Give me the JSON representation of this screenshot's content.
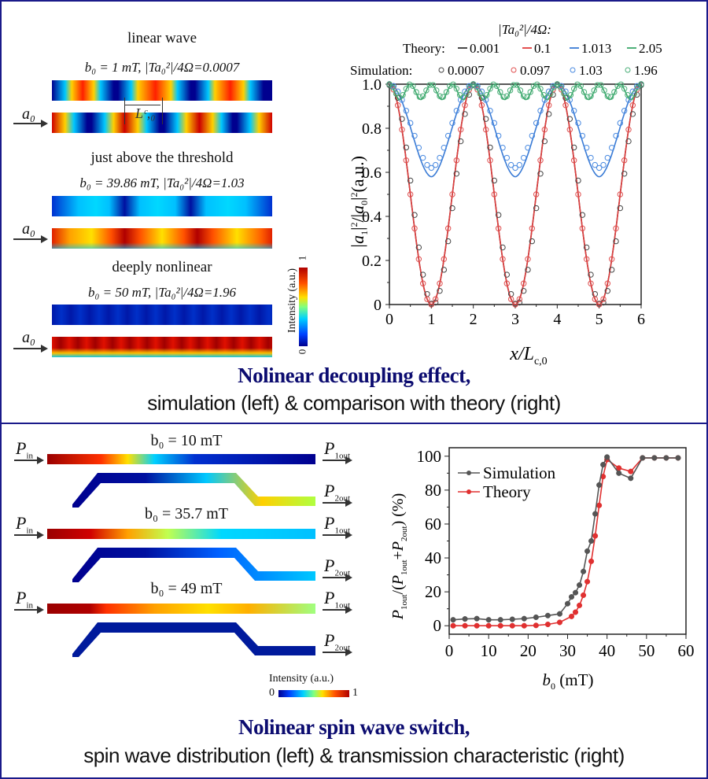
{
  "top_panel": {
    "sim": [
      {
        "title": "linear wave",
        "params": "b₀ = 1 mT, |Ta₀²|/4Ω=0.0007",
        "input_label": "a₀",
        "length_label": "Lᶜ,₀"
      },
      {
        "title": "just above the threshold",
        "params": "b₀ = 39.86 mT, |Ta₀²|/4Ω=1.03",
        "input_label": "a₀"
      },
      {
        "title": "deeply nonlinear",
        "params": "b₀ = 50 mT, |Ta₀²|/4Ω=1.96",
        "input_label": "a₀"
      }
    ],
    "colorbar": {
      "label": "Intensity (a.u.)",
      "min": "0",
      "max": "1"
    },
    "caption_title": "Nolinear decoupling effect,",
    "caption_sub": "simulation (left) & comparison with theory (right)"
  },
  "bottom_panel": {
    "sim": [
      {
        "title": "b₀ = 10 mT",
        "input": "P",
        "input_sub": "in",
        "out1": "P",
        "out1_sub": "1out",
        "out2": "P",
        "out2_sub": "2out"
      },
      {
        "title": "b₀ = 35.7 mT",
        "input": "P",
        "input_sub": "in",
        "out1": "P",
        "out1_sub": "1out",
        "out2": "P",
        "out2_sub": "2out"
      },
      {
        "title": "b₀ = 49 mT",
        "input": "P",
        "input_sub": "in",
        "out1": "P",
        "out1_sub": "1out",
        "out2": "P",
        "out2_sub": "2out"
      }
    ],
    "colorbar": {
      "label": "Intensity (a.u.)",
      "min": "0",
      "max": "1"
    },
    "caption_title": "Nolinear spin wave switch,",
    "caption_sub": "spin wave distribution (left) & transmission characteristic (right)"
  },
  "chart_data": [
    {
      "type": "line",
      "title": "|Ta₀²|/4Ω:",
      "xlabel": "x/L_c,0",
      "ylabel": "|a₁|²/|a₀|² (a.u.)",
      "xlim": [
        0,
        6
      ],
      "ylim": [
        0,
        1.0
      ],
      "xticks": [
        "0",
        "1",
        "2",
        "3",
        "4",
        "5",
        "6"
      ],
      "yticks": [
        "0",
        "0.2",
        "0.4",
        "0.6",
        "0.8",
        "1.0"
      ],
      "legend_theory_label": "Theory:",
      "legend_sim_label": "Simulation:",
      "series": [
        {
          "name": "Theory 0.001",
          "kind": "theory",
          "color": "#333333",
          "min": 0.0
        },
        {
          "name": "Theory 0.1",
          "kind": "theory",
          "color": "#e03c3c",
          "min": 0.0
        },
        {
          "name": "Theory 1.013",
          "kind": "theory",
          "color": "#3a7bd5",
          "min": 0.58
        },
        {
          "name": "Theory 2.05",
          "kind": "theory",
          "color": "#3aa86a",
          "min": 0.93,
          "period": 0.5
        },
        {
          "name": "Simulation 0.0007",
          "kind": "simulation",
          "color": "#444444",
          "min": 0.0,
          "shift": 0.04
        },
        {
          "name": "Simulation 0.097",
          "kind": "simulation",
          "color": "#e05050",
          "min": 0.0
        },
        {
          "name": "Simulation 1.03",
          "kind": "simulation",
          "color": "#4a8ae0",
          "min": 0.62
        },
        {
          "name": "Simulation 1.96",
          "kind": "simulation",
          "color": "#4aae78",
          "min": 0.94,
          "period": 0.5
        }
      ],
      "legend_entries": {
        "theory": [
          "0.001",
          "0.1",
          "1.013",
          "2.05"
        ],
        "simulation": [
          "0.0007",
          "0.097",
          "1.03",
          "1.96"
        ]
      }
    },
    {
      "type": "line",
      "title": "",
      "xlabel": "b₀ (mT)",
      "ylabel": "P1out/(P1out+P2out) (%)",
      "xlim": [
        0,
        60
      ],
      "ylim": [
        -5,
        105
      ],
      "xticks": [
        "0",
        "10",
        "20",
        "30",
        "40",
        "50",
        "60"
      ],
      "yticks": [
        "0",
        "20",
        "40",
        "60",
        "80",
        "100"
      ],
      "legend_position": "top-left",
      "series": [
        {
          "name": "Simulation",
          "color": "#555555",
          "x": [
            1,
            4,
            7,
            10,
            13,
            16,
            19,
            22,
            25,
            28,
            30,
            31,
            32,
            33,
            34,
            35,
            36,
            37,
            38,
            39,
            40,
            43,
            46,
            49,
            52,
            55,
            58
          ],
          "y": [
            3.5,
            4,
            4.2,
            3.5,
            3.5,
            3.8,
            4.2,
            5,
            6,
            7,
            13,
            17,
            19.5,
            24,
            32,
            44,
            50,
            66,
            83,
            95,
            99.5,
            90,
            87,
            99,
            99,
            99,
            99
          ]
        },
        {
          "name": "Theory",
          "color": "#e03030",
          "x": [
            1,
            4,
            7,
            10,
            13,
            16,
            19,
            22,
            25,
            28,
            31,
            32,
            33,
            34,
            35,
            36,
            37,
            38,
            39,
            40,
            43,
            46,
            49,
            52,
            55,
            58
          ],
          "y": [
            0,
            0,
            0,
            0,
            0,
            0,
            0,
            0.2,
            0.8,
            2,
            5.5,
            8,
            12,
            18,
            26,
            38,
            53,
            71,
            88,
            98,
            93,
            91,
            99,
            99,
            99,
            99
          ]
        }
      ]
    }
  ]
}
